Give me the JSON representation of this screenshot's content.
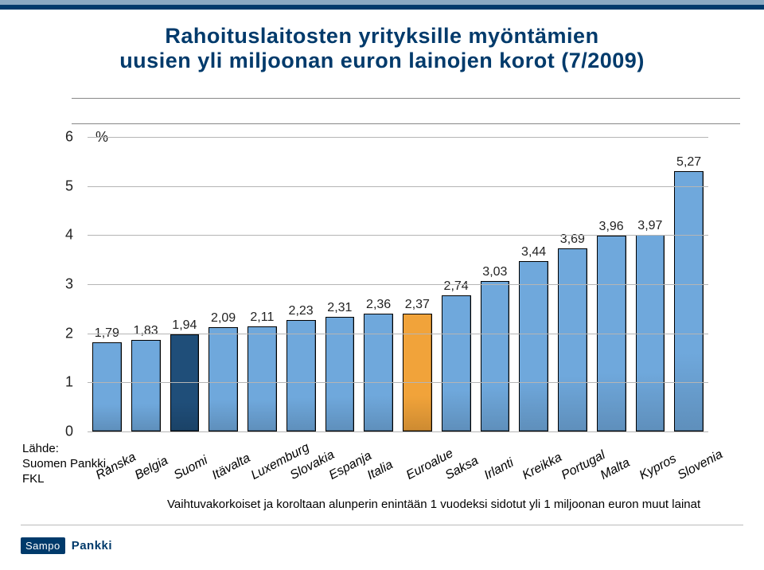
{
  "header_bars": [
    "#8aa9c2",
    "#003a6b"
  ],
  "title": {
    "line1": "Rahoituslaitosten yrityksille myöntämien",
    "line2": "uusien yli miljoonan euron lainojen korot (7/2009)",
    "color": "#003a6b",
    "fontsize": 27
  },
  "hr_color": "#888888",
  "chart": {
    "type": "bar",
    "ylim": [
      0,
      6
    ],
    "ytick_step": 1,
    "percent_label": "%",
    "background_color": "#ffffff",
    "grid_color": "#b5b5b5",
    "bar_default_color": "#6fa8dc",
    "bar_accent_colors": {
      "Suomi": "#1f4e79",
      "Euroalue": "#f1a33a"
    },
    "value_fontsize": 16,
    "categories": [
      {
        "label": "Ranska",
        "value": 1.79
      },
      {
        "label": "Belgia",
        "value": 1.83
      },
      {
        "label": "Suomi",
        "value": 1.94
      },
      {
        "label": "Itävalta",
        "value": 2.09
      },
      {
        "label": "Luxemburg",
        "value": 2.11
      },
      {
        "label": "Slovakia",
        "value": 2.23
      },
      {
        "label": "Espanja",
        "value": 2.31
      },
      {
        "label": "Italia",
        "value": 2.36
      },
      {
        "label": "Euroalue",
        "value": 2.37
      },
      {
        "label": "Saksa",
        "value": 2.74
      },
      {
        "label": "Irlanti",
        "value": 3.03
      },
      {
        "label": "Kreikka",
        "value": 3.44
      },
      {
        "label": "Portugal",
        "value": 3.69
      },
      {
        "label": "Malta",
        "value": 3.96
      },
      {
        "label": "Kypros",
        "value": 3.97
      },
      {
        "label": "Slovenia",
        "value": 5.27
      }
    ],
    "xlabel_fontsize": 16,
    "xlabel_rotation_deg": -28
  },
  "source": {
    "line1": "Lähde:",
    "line2": "Suomen Pankki,",
    "line3": "FKL"
  },
  "caption": "Vaihtuvakorkoiset ja koroltaan alunperin enintään 1 vuodeksi sidotut yli 1 miljoonan euron muut lainat",
  "logo": {
    "box": "Sampo",
    "text": "Pankki",
    "box_bg": "#003a6b",
    "text_color": "#003a6b"
  }
}
